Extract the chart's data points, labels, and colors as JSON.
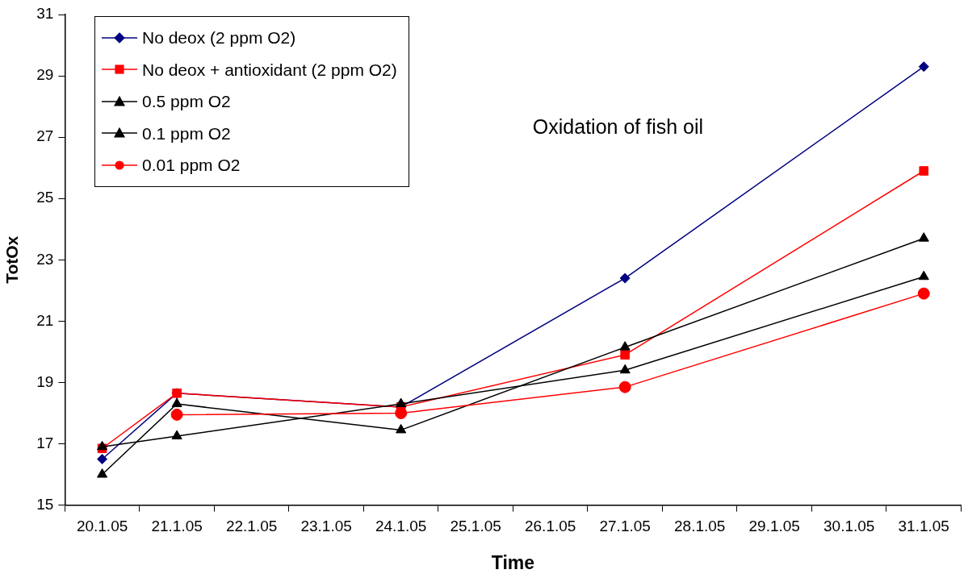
{
  "chart_data": {
    "type": "line",
    "title": "Oxidation of fish oil",
    "xlabel": "Time",
    "ylabel": "TotOx",
    "categories": [
      "20.1.05",
      "21.1.05",
      "22.1.05",
      "23.1.05",
      "24.1.05",
      "25.1.05",
      "26.1.05",
      "27.1.05",
      "28.1.05",
      "29.1.05",
      "30.1.05",
      "31.1.05"
    ],
    "series": [
      {
        "name": "No deox (2 ppm O2)",
        "color": "#000080",
        "marker": "diamond",
        "values": [
          16.5,
          18.65,
          null,
          null,
          18.2,
          null,
          null,
          22.4,
          null,
          null,
          null,
          29.3
        ]
      },
      {
        "name": "No deox + antioxidant (2 ppm O2)",
        "color": "#ff0000",
        "marker": "square",
        "values": [
          16.85,
          18.65,
          null,
          null,
          18.2,
          null,
          null,
          19.9,
          null,
          null,
          null,
          25.9
        ]
      },
      {
        "name": "0.5 ppm O2",
        "color": "#000000",
        "marker": "triangle",
        "values": [
          16.0,
          18.3,
          null,
          null,
          17.45,
          null,
          null,
          20.15,
          null,
          null,
          null,
          23.7
        ]
      },
      {
        "name": "0.1 ppm O2",
        "color": "#000000",
        "marker": "triangle",
        "values": [
          16.9,
          17.25,
          null,
          null,
          18.3,
          null,
          null,
          19.4,
          null,
          null,
          null,
          22.45
        ]
      },
      {
        "name": "0.01 ppm O2",
        "color": "#ff0000",
        "marker": "circle",
        "values": [
          null,
          17.95,
          null,
          null,
          18.0,
          null,
          null,
          18.85,
          null,
          null,
          null,
          21.9
        ]
      }
    ],
    "ylim": [
      15,
      31
    ],
    "yticks": [
      15,
      17,
      19,
      21,
      23,
      25,
      27,
      29,
      31
    ],
    "grid": false,
    "legend": "top left",
    "line_style": "solid"
  }
}
